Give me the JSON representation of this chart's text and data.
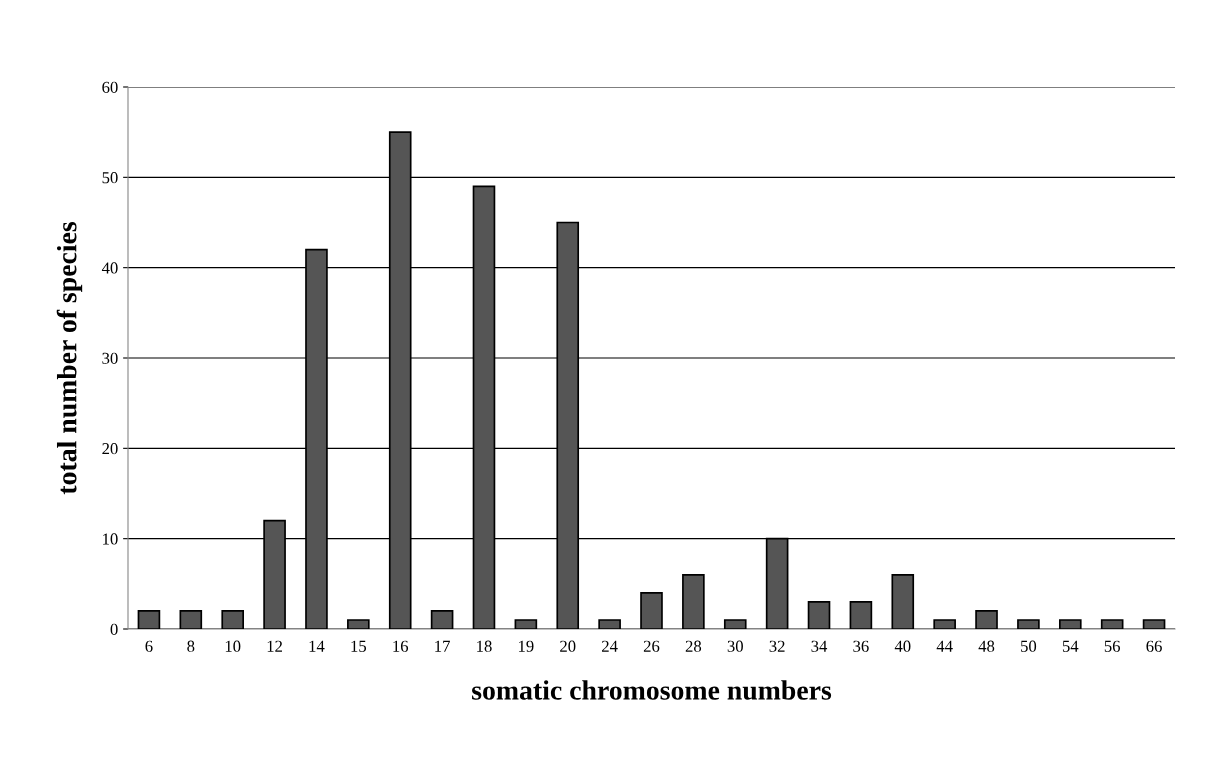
{
  "chart_data": {
    "type": "bar",
    "xlabel": "somatic chromosome numbers",
    "ylabel": "total number of species",
    "categories": [
      "6",
      "8",
      "10",
      "12",
      "14",
      "15",
      "16",
      "17",
      "18",
      "19",
      "20",
      "24",
      "26",
      "28",
      "30",
      "32",
      "34",
      "36",
      "40",
      "44",
      "48",
      "50",
      "54",
      "56",
      "66"
    ],
    "values": [
      2,
      2,
      2,
      12,
      42,
      1,
      55,
      2,
      49,
      1,
      45,
      1,
      4,
      6,
      1,
      10,
      3,
      3,
      6,
      1,
      2,
      1,
      1,
      1,
      1
    ],
    "color": "#555555",
    "ylim": [
      0,
      60
    ],
    "yticks": [
      0,
      10,
      20,
      30,
      40,
      50,
      60
    ],
    "grid": "y"
  }
}
